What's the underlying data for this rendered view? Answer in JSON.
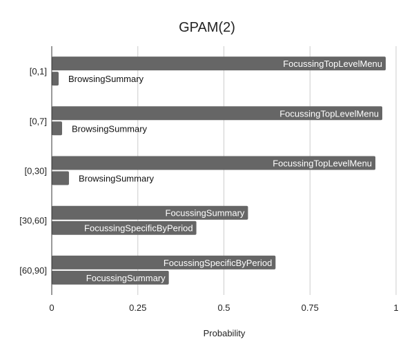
{
  "chart_data": {
    "type": "bar",
    "orientation": "horizontal",
    "title": "GPAM(2)",
    "xlabel": "Probability",
    "ylabel": "",
    "xlim": [
      0,
      1
    ],
    "x_ticks": [
      "0",
      "0.25",
      "0.5",
      "0.75",
      "1"
    ],
    "grid": true,
    "legend": "none",
    "bar_color": "#666666",
    "categories": [
      "[0,1]",
      "[0,7]",
      "[0,30]",
      "[30,60]",
      "[60,90]"
    ],
    "bars": [
      [
        {
          "label": "FocussingTopLevelMenu",
          "value": 0.97
        },
        {
          "label": "BrowsingSummary",
          "value": 0.02
        }
      ],
      [
        {
          "label": "FocussingTopLevelMenu",
          "value": 0.96
        },
        {
          "label": "BrowsingSummary",
          "value": 0.03
        }
      ],
      [
        {
          "label": "FocussingTopLevelMenu",
          "value": 0.94
        },
        {
          "label": "BrowsingSummary",
          "value": 0.05
        }
      ],
      [
        {
          "label": "FocussingSummary",
          "value": 0.57
        },
        {
          "label": "FocussingSpecificByPeriod",
          "value": 0.42
        }
      ],
      [
        {
          "label": "FocussingSpecificByPeriod",
          "value": 0.65
        },
        {
          "label": "FocussingSummary",
          "value": 0.34
        }
      ]
    ]
  }
}
